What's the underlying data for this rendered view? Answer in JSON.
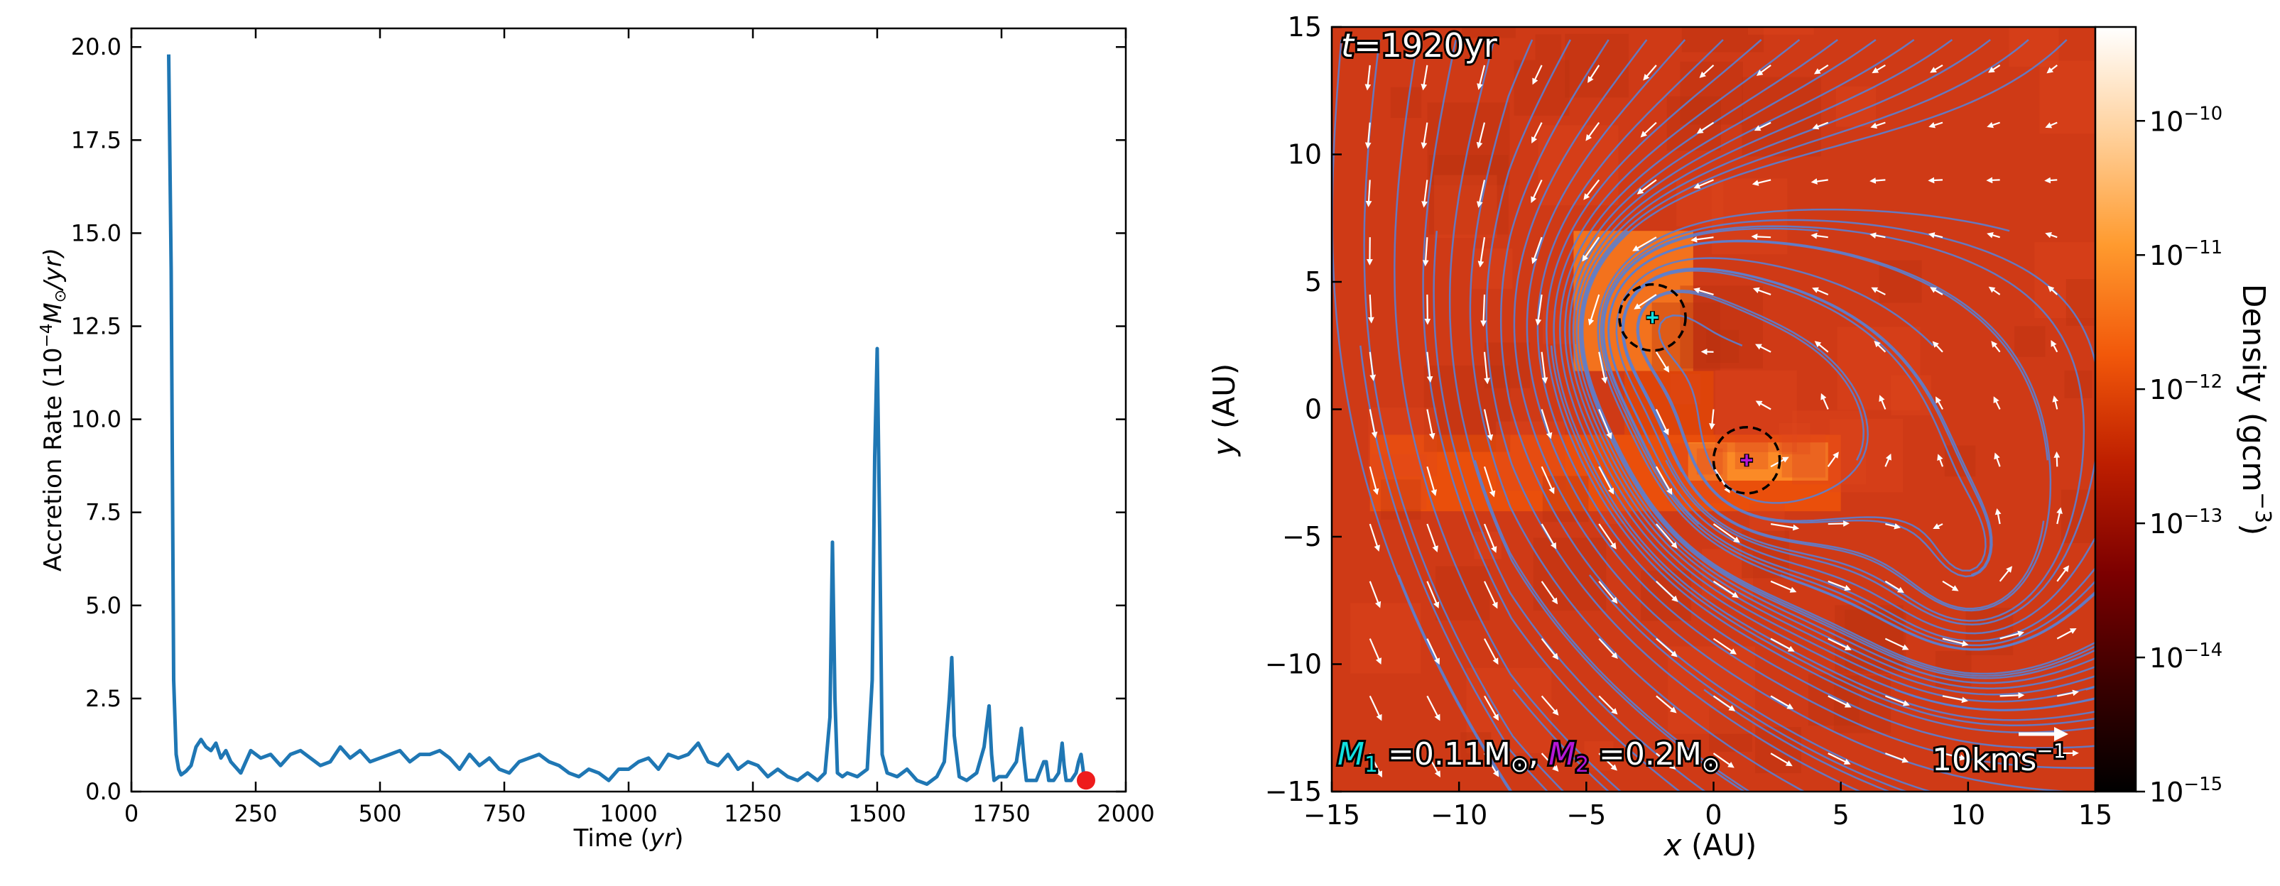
{
  "colors": {
    "line": "#1f77b4",
    "marker": "#ee1c1c",
    "stream": "#5b7fd0",
    "arrow": "#ffffff",
    "m1": "#11e0e0",
    "m2": "#b517d6"
  },
  "chart_data": [
    {
      "type": "line",
      "xlabel_prefix": "Time (",
      "xlabel_unit": "yr",
      "xlabel_suffix": ")",
      "ylabel_prefix": "Accretion Rate (10",
      "ylabel_exp": "−4",
      "ylabel_unit": "M",
      "ylabel_sun": "⊙",
      "ylabel_suffix": "/yr)",
      "xlim": [
        0,
        2000
      ],
      "ylim": [
        0,
        20.5
      ],
      "x_ticks": [
        0,
        250,
        500,
        750,
        1000,
        1250,
        1500,
        1750,
        2000
      ],
      "x_tick_labels": [
        "0",
        "250",
        "500",
        "750",
        "1000",
        "1250",
        "1500",
        "1750",
        "2000"
      ],
      "y_ticks": [
        0,
        2.5,
        5,
        7.5,
        10,
        12.5,
        15,
        17.5,
        20
      ],
      "y_tick_labels": [
        "0.0",
        "2.5",
        "5.0",
        "7.5",
        "10.0",
        "12.5",
        "15.0",
        "17.5",
        "20.0"
      ],
      "series": [
        {
          "name": "accretion rate",
          "x": [
            75,
            80,
            85,
            90,
            95,
            100,
            110,
            120,
            130,
            140,
            150,
            160,
            170,
            180,
            190,
            200,
            220,
            240,
            260,
            280,
            300,
            320,
            340,
            360,
            380,
            400,
            420,
            440,
            460,
            480,
            500,
            520,
            540,
            560,
            580,
            600,
            620,
            640,
            660,
            680,
            700,
            720,
            740,
            760,
            780,
            800,
            820,
            840,
            860,
            880,
            900,
            920,
            940,
            960,
            980,
            1000,
            1020,
            1040,
            1060,
            1080,
            1100,
            1120,
            1140,
            1160,
            1180,
            1200,
            1220,
            1240,
            1260,
            1280,
            1300,
            1320,
            1340,
            1360,
            1380,
            1395,
            1405,
            1410,
            1415,
            1420,
            1430,
            1440,
            1460,
            1480,
            1490,
            1495,
            1500,
            1505,
            1510,
            1520,
            1540,
            1560,
            1580,
            1600,
            1620,
            1635,
            1645,
            1650,
            1655,
            1665,
            1680,
            1700,
            1715,
            1725,
            1730,
            1735,
            1745,
            1760,
            1780,
            1790,
            1795,
            1800,
            1810,
            1820,
            1835,
            1840,
            1845,
            1855,
            1865,
            1872,
            1876,
            1880,
            1890,
            1900,
            1905,
            1910,
            1915,
            1920
          ],
          "values": [
            19.8,
            14.0,
            3.0,
            1.0,
            0.6,
            0.45,
            0.55,
            0.7,
            1.2,
            1.4,
            1.2,
            1.1,
            1.3,
            0.9,
            1.1,
            0.8,
            0.5,
            1.1,
            0.9,
            1.0,
            0.7,
            1.0,
            1.1,
            0.9,
            0.7,
            0.8,
            1.2,
            0.9,
            1.1,
            0.8,
            0.9,
            1.0,
            1.1,
            0.8,
            1.0,
            1.0,
            1.1,
            0.9,
            0.6,
            1.0,
            0.7,
            0.9,
            0.6,
            0.5,
            0.8,
            0.9,
            1.0,
            0.8,
            0.7,
            0.5,
            0.4,
            0.6,
            0.5,
            0.3,
            0.6,
            0.6,
            0.8,
            0.9,
            0.6,
            1.0,
            0.9,
            1.0,
            1.3,
            0.8,
            0.7,
            1.0,
            0.6,
            0.8,
            0.7,
            0.4,
            0.6,
            0.4,
            0.3,
            0.5,
            0.3,
            0.5,
            2.0,
            6.7,
            2.5,
            0.5,
            0.4,
            0.5,
            0.4,
            0.6,
            3.0,
            9.0,
            11.9,
            7.0,
            1.0,
            0.5,
            0.4,
            0.6,
            0.3,
            0.2,
            0.4,
            0.8,
            2.5,
            3.6,
            1.5,
            0.4,
            0.3,
            0.5,
            1.2,
            2.3,
            1.0,
            0.3,
            0.4,
            0.4,
            0.8,
            1.7,
            0.9,
            0.3,
            0.3,
            0.3,
            0.8,
            0.8,
            0.3,
            0.3,
            0.5,
            1.3,
            0.7,
            0.3,
            0.3,
            0.5,
            0.8,
            1.0,
            0.5,
            0.3
          ]
        },
        {
          "name": "current time marker",
          "type": "scatter",
          "x": [
            1920
          ],
          "values": [
            0.3
          ]
        }
      ]
    },
    {
      "type": "heatmap",
      "time_prefix": "t",
      "time_value": "=1920yr",
      "xlabel_var": "x",
      "xlabel_unit": " (AU)",
      "ylabel_var": "y",
      "ylabel_unit": " (AU)",
      "xlim": [
        -15,
        15
      ],
      "ylim": [
        -15,
        15
      ],
      "x_ticks": [
        -15,
        -10,
        -5,
        0,
        5,
        10,
        15
      ],
      "x_tick_labels": [
        "−15",
        "−10",
        "−5",
        "0",
        "5",
        "10",
        "15"
      ],
      "y_ticks": [
        -15,
        -10,
        -5,
        0,
        5,
        10,
        15
      ],
      "y_tick_labels": [
        "−15",
        "−10",
        "−5",
        "0",
        "5",
        "10",
        "15"
      ],
      "colorbar": {
        "label_text": "Density (gcm",
        "label_exp": "−3",
        "label_close": ")",
        "log_range": [
          -15,
          -9.3
        ],
        "ticks": [
          -15,
          -14,
          -13,
          -12,
          -11,
          -10
        ],
        "tick_bases": [
          "10",
          "10",
          "10",
          "10",
          "10",
          "10"
        ],
        "tick_exps": [
          "−15",
          "−14",
          "−13",
          "−12",
          "−11",
          "−10"
        ],
        "stops": [
          "#000000",
          "#3b0000",
          "#7c0000",
          "#bd1e00",
          "#f2580a",
          "#ff9a2e",
          "#ffd09a",
          "#ffffff"
        ]
      },
      "density_background": "#cf3a16",
      "density_patches": [
        {
          "region": "upper clump",
          "x_range": [
            -5.5,
            -0.8
          ],
          "y_range": [
            1.5,
            7.0
          ],
          "log_density": -11.3
        },
        {
          "region": "bar",
          "x_range": [
            -13.5,
            5.0
          ],
          "y_range": [
            -4.0,
            -1.0
          ],
          "log_density": -11.8
        },
        {
          "region": "bar core",
          "x_range": [
            -1.0,
            4.5
          ],
          "y_range": [
            -2.8,
            -1.3
          ],
          "log_density": -11.0
        },
        {
          "region": "connector",
          "x_range": [
            -3.5,
            0.0
          ],
          "y_range": [
            -1.0,
            1.5
          ],
          "log_density": -12.0
        }
      ],
      "sinks": [
        {
          "name": "M1",
          "x": -2.4,
          "y": 3.6,
          "radius": 1.3
        },
        {
          "name": "M2",
          "x": 1.3,
          "y": -2.0,
          "radius": 1.3
        }
      ],
      "mass_label": {
        "m1_var": "M",
        "m1_sub": "1",
        "m1_eq": " =0.11M",
        "sun": "⊙",
        "sep": ", ",
        "m2_var": "M",
        "m2_sub": "2",
        "m2_eq": " =0.2M"
      },
      "velocity_key": {
        "label": "10kms",
        "label_exp": "−1",
        "speed_kms": 10
      },
      "arrow_field_grid": {
        "x_range": [
          -13.5,
          13.5
        ],
        "y_range": [
          -13.5,
          13.5
        ],
        "count": 13
      },
      "streamline_count": 40
    }
  ]
}
